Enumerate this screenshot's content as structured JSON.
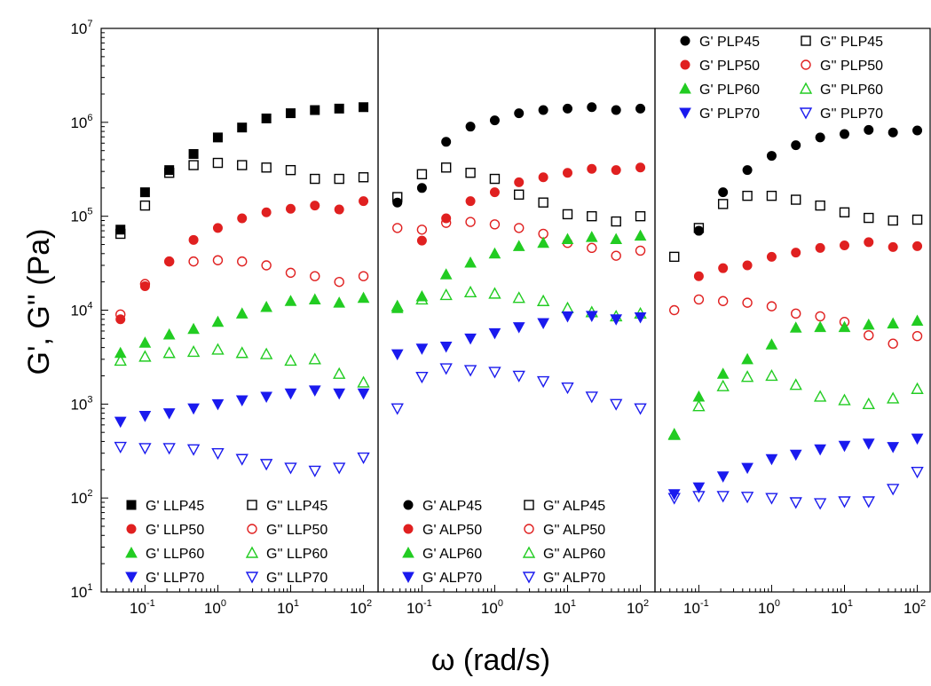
{
  "chart_data": {
    "type": "scatter",
    "xlabel": "ω (rad/s)",
    "ylabel": "G', G'' (Pa)",
    "x_scale": "log",
    "y_scale": "log",
    "xlim": [
      0.025,
      150
    ],
    "ylim": [
      10,
      10000000
    ],
    "x_ticks": [
      {
        "base": "10",
        "exp": "-1",
        "value": 0.1
      },
      {
        "base": "10",
        "exp": "0",
        "value": 1
      },
      {
        "base": "10",
        "exp": "1",
        "value": 10
      },
      {
        "base": "10",
        "exp": "2",
        "value": 100
      }
    ],
    "y_ticks": [
      {
        "base": "10",
        "exp": "1",
        "value": 10
      },
      {
        "base": "10",
        "exp": "2",
        "value": 100
      },
      {
        "base": "10",
        "exp": "3",
        "value": 1000
      },
      {
        "base": "10",
        "exp": "4",
        "value": 10000
      },
      {
        "base": "10",
        "exp": "5",
        "value": 100000
      },
      {
        "base": "10",
        "exp": "6",
        "value": 1000000
      },
      {
        "base": "10",
        "exp": "7",
        "value": 10000000
      }
    ],
    "x": [
      0.046,
      0.1,
      0.215,
      0.464,
      1,
      2.15,
      4.64,
      10,
      21.5,
      46.4,
      100
    ],
    "panels": [
      {
        "legend_position": "bottom-left",
        "series": [
          {
            "name": "G' LLP45",
            "marker": "square",
            "filled": true,
            "color": "#000000",
            "values": [
              72000,
              180000,
              310000,
              460000,
              690000,
              880000,
              1100000,
              1250000,
              1350000,
              1400000,
              1450000
            ]
          },
          {
            "name": "G'' LLP45",
            "marker": "square",
            "filled": false,
            "color": "#000000",
            "values": [
              65000,
              130000,
              290000,
              350000,
              370000,
              350000,
              330000,
              310000,
              250000,
              250000,
              260000
            ]
          },
          {
            "name": "G' LLP50",
            "marker": "circle",
            "filled": true,
            "color": "#e02020",
            "values": [
              8000,
              18000,
              33000,
              56000,
              75000,
              95000,
              110000,
              120000,
              130000,
              118000,
              145000
            ]
          },
          {
            "name": "G'' LLP50",
            "marker": "circle",
            "filled": false,
            "color": "#e02020",
            "values": [
              9000,
              19000,
              33000,
              33000,
              34000,
              33000,
              30000,
              25000,
              23000,
              20000,
              23000
            ]
          },
          {
            "name": "G' LLP60",
            "marker": "triangle-up",
            "filled": true,
            "color": "#22cc22",
            "values": [
              3500,
              4500,
              5500,
              6300,
              7500,
              9200,
              10800,
              12500,
              13000,
              12000,
              13500
            ]
          },
          {
            "name": "G'' LLP60",
            "marker": "triangle-up",
            "filled": false,
            "color": "#22cc22",
            "values": [
              2900,
              3200,
              3500,
              3600,
              3800,
              3500,
              3400,
              2900,
              3000,
              2100,
              1700
            ]
          },
          {
            "name": "G' LLP70",
            "marker": "triangle-down",
            "filled": true,
            "color": "#1a1aee",
            "values": [
              650,
              750,
              800,
              900,
              1000,
              1100,
              1200,
              1300,
              1400,
              1300,
              1300
            ]
          },
          {
            "name": "G'' LLP70",
            "marker": "triangle-down",
            "filled": false,
            "color": "#1a1aee",
            "values": [
              350,
              340,
              340,
              330,
              300,
              260,
              230,
              210,
              195,
              210,
              270
            ]
          }
        ]
      },
      {
        "legend_position": "bottom-left",
        "series": [
          {
            "name": "G' ALP45",
            "marker": "circle",
            "filled": true,
            "color": "#000000",
            "values": [
              140000,
              200000,
              620000,
              900000,
              1050000,
              1250000,
              1350000,
              1400000,
              1450000,
              1350000,
              1400000
            ]
          },
          {
            "name": "G'' ALP45",
            "marker": "square",
            "filled": false,
            "color": "#000000",
            "values": [
              160000,
              280000,
              330000,
              290000,
              250000,
              170000,
              140000,
              105000,
              100000,
              88000,
              100000
            ]
          },
          {
            "name": "G' ALP50",
            "marker": "circle",
            "filled": true,
            "color": "#e02020",
            "values": [
              null,
              55000,
              95000,
              145000,
              180000,
              230000,
              260000,
              290000,
              320000,
              310000,
              330000
            ]
          },
          {
            "name": "G'' ALP50",
            "marker": "circle",
            "filled": false,
            "color": "#e02020",
            "values": [
              75000,
              72000,
              85000,
              87000,
              82000,
              75000,
              65000,
              52000,
              46000,
              38000,
              43000
            ]
          },
          {
            "name": "G' ALP60",
            "marker": "triangle-up",
            "filled": true,
            "color": "#22cc22",
            "values": [
              10500,
              14000,
              24000,
              32000,
              40000,
              48000,
              52000,
              57000,
              60000,
              57000,
              62000
            ]
          },
          {
            "name": "G'' ALP60",
            "marker": "triangle-up",
            "filled": false,
            "color": "#22cc22",
            "values": [
              11000,
              13000,
              14500,
              15500,
              15000,
              13500,
              12500,
              10500,
              9500,
              8600,
              9200
            ]
          },
          {
            "name": "G' ALP70",
            "marker": "triangle-down",
            "filled": true,
            "color": "#1a1aee",
            "values": [
              3400,
              3900,
              4100,
              5000,
              5700,
              6600,
              7300,
              8600,
              8700,
              8000,
              8400
            ]
          },
          {
            "name": "G'' ALP70",
            "marker": "triangle-down",
            "filled": false,
            "color": "#1a1aee",
            "values": [
              900,
              1950,
              2400,
              2300,
              2200,
              2000,
              1750,
              1500,
              1200,
              1000,
              900
            ]
          }
        ]
      },
      {
        "legend_position": "top-left",
        "series": [
          {
            "name": "G' PLP45",
            "marker": "circle",
            "filled": true,
            "color": "#000000",
            "values": [
              null,
              70000,
              180000,
              310000,
              440000,
              570000,
              690000,
              750000,
              830000,
              780000,
              820000
            ]
          },
          {
            "name": "G'' PLP45",
            "marker": "square",
            "filled": false,
            "color": "#000000",
            "values": [
              37000,
              75000,
              135000,
              165000,
              165000,
              150000,
              130000,
              110000,
              96000,
              90000,
              92000
            ]
          },
          {
            "name": "G' PLP50",
            "marker": "circle",
            "filled": true,
            "color": "#e02020",
            "values": [
              null,
              23000,
              28000,
              30000,
              37000,
              41000,
              46000,
              49000,
              53000,
              47000,
              48000
            ]
          },
          {
            "name": "G'' PLP50",
            "marker": "circle",
            "filled": false,
            "color": "#e02020",
            "values": [
              10000,
              13000,
              12500,
              12000,
              11000,
              9200,
              8600,
              7500,
              5400,
              4400,
              5300
            ]
          },
          {
            "name": "G' PLP60",
            "marker": "triangle-up",
            "filled": true,
            "color": "#22cc22",
            "values": [
              480,
              1200,
              2100,
              3000,
              4300,
              6500,
              6600,
              6600,
              7000,
              7200,
              7700
            ]
          },
          {
            "name": "G'' PLP60",
            "marker": "triangle-up",
            "filled": false,
            "color": "#22cc22",
            "values": [
              470,
              950,
              1550,
              1950,
              2000,
              1600,
              1200,
              1100,
              1000,
              1150,
              1450
            ]
          },
          {
            "name": "G' PLP70",
            "marker": "triangle-down",
            "filled": true,
            "color": "#1a1aee",
            "values": [
              110,
              130,
              170,
              210,
              260,
              290,
              330,
              360,
              380,
              350,
              430
            ]
          },
          {
            "name": "G'' PLP70",
            "marker": "triangle-down",
            "filled": false,
            "color": "#1a1aee",
            "values": [
              100,
              105,
              105,
              103,
              100,
              90,
              88,
              92,
              92,
              125,
              190
            ]
          }
        ]
      }
    ]
  }
}
